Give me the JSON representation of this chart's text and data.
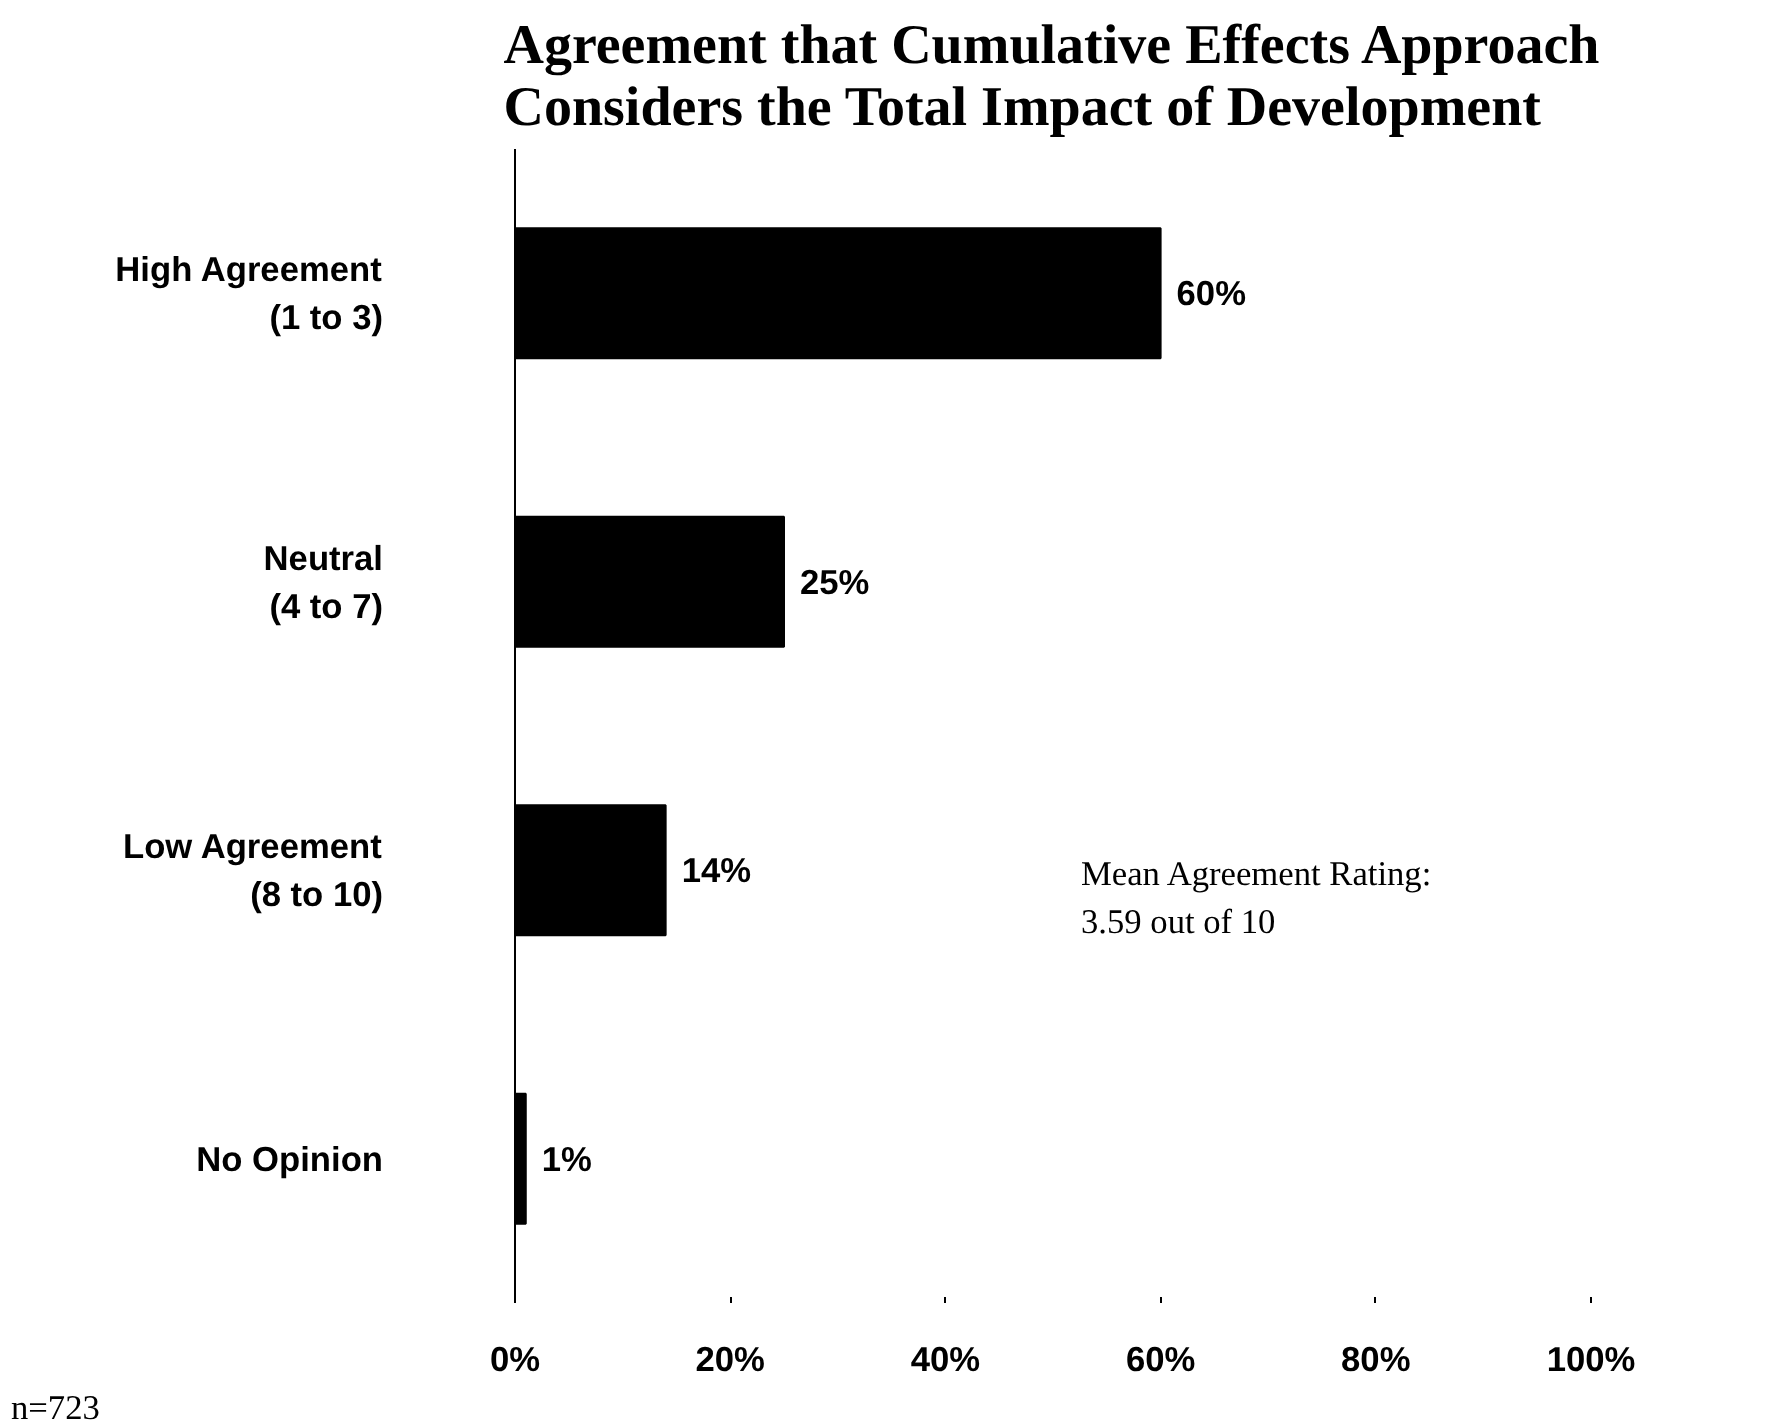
{
  "chart_data": {
    "type": "bar",
    "orientation": "horizontal",
    "title": "Agreement that Cumulative Effects Approach Considers the Total Impact of Development",
    "categories": [
      "High Agreement (1 to 3)",
      "Neutral (4 to 7)",
      "Low Agreement (8 to 10)",
      "No Opinion"
    ],
    "values": [
      60,
      25,
      14,
      1
    ],
    "color": "#000000",
    "value_labels": [
      "60%",
      "25%",
      "14%",
      "1%"
    ],
    "xlim": [
      0,
      100
    ],
    "xticks": [
      {
        "value": 0,
        "label": "0%"
      },
      {
        "value": 20,
        "label": "20%"
      },
      {
        "value": 40,
        "label": "40%"
      },
      {
        "value": 60,
        "label": "60%"
      },
      {
        "value": 80,
        "label": "80%"
      },
      {
        "value": 100,
        "label": "100%"
      }
    ],
    "grid": false,
    "annotations": [
      "Mean Agreement Rating:",
      "3.59 out of 10",
      "n=723"
    ]
  }
}
